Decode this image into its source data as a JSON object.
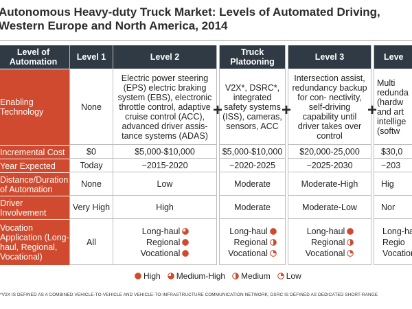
{
  "title_line1": "Autonomous Heavy-duty Truck Market: Levels of Automated Driving,",
  "title_line2": "Western Europe and North America, 2014",
  "headers": [
    "Level of Automation",
    "Level 1",
    "Level 2",
    "Truck Platooning",
    "Level 3",
    "Leve"
  ],
  "rows": {
    "enabling": {
      "label": "Enabling Technology",
      "l1": "None",
      "l2": "Electric power steering (EPS) electric braking system (EBS), electronic throttle control, adaptive cruise control (ACC), advanced driver assis- tance systems (ADAS)",
      "tp": "V2X*, DSRC*, integrated safety systems (ISS), cameras, sensors, ACC",
      "l3": "Intersection assist, redundancy backup for con- nectivity, self-driving capability until driver takes over control",
      "l4": "Multi redunda (hardw and art intellige (softw"
    },
    "cost": {
      "label": "Incremental Cost",
      "l1": "$0",
      "l2": "$5,000-$10,000",
      "tp": "$5,000-$10,000",
      "l3": "$20,000-25,000",
      "l4": "$30,0"
    },
    "year": {
      "label": "Year Expected",
      "l1": "Today",
      "l2": "~2015-2020",
      "tp": "~2020-2025",
      "l3": "~2025-2030",
      "l4": "~203"
    },
    "distance": {
      "label": "Distance/Duration of Automation",
      "l1": "None",
      "l2": "Low",
      "tp": "Moderate",
      "l3": "Moderate-High",
      "l4": "Hig"
    },
    "driver": {
      "label": "Driver Involvement",
      "l1": "Very High",
      "l2": "High",
      "tp": "Moderate",
      "l3": "Moderate-Low",
      "l4": "Nor"
    },
    "vocation": {
      "label": "Vocation Application (Long-haul, Regional, Vocational)",
      "l1": "All",
      "apps": [
        "Long-haul",
        "Regional",
        "Vocational"
      ],
      "l2_levels": [
        "medium-high",
        "high",
        "high"
      ],
      "tp_levels": [
        "high",
        "medium",
        "low"
      ],
      "l3_levels": [
        "high",
        "medium",
        "low"
      ],
      "l4_apps": [
        "Long-ha",
        "Regio",
        "Vocation"
      ]
    }
  },
  "plus_sign": "+",
  "legend": [
    "High",
    "Medium-High",
    "Medium",
    "Low"
  ],
  "footnote": "*V2X IS DEFINED AS A COMBINED VEHICLE-TO-VEHICLE AND VEHICLE-TO-INFRASTRUCTURE COMMUNICATION NETWORK; DSRC IS DEFINED AS DEDICATED SHORT-RANGE",
  "colors": {
    "header": "#2f3a44",
    "label": "#cf4a2e",
    "dot": "#cf4a2e"
  }
}
